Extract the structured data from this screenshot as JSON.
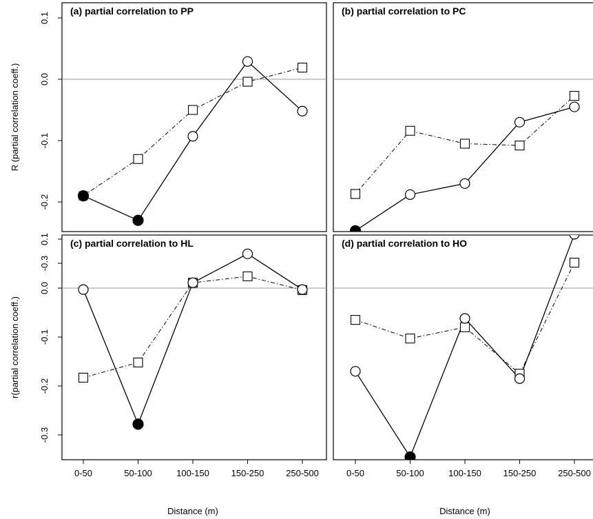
{
  "chart_data": {
    "type": "line",
    "xlabel": "Distance (m)",
    "categories": [
      "0-50",
      "50-100",
      "100-150",
      "150-250",
      "250-500"
    ],
    "ylim": [
      -0.35,
      0.15
    ],
    "yticks": [
      0.1,
      0.0,
      -0.1,
      -0.2,
      -0.3
    ],
    "ytick_labels": [
      "0.1",
      "0.0",
      "-0.1",
      "-0.2",
      "-0.3"
    ],
    "reference_line": 0,
    "colors": {
      "filled_highlight": "#000000",
      "gray_highlight": "#aaaaaa",
      "reference": "#999999"
    },
    "panels": [
      {
        "title": "(a) partial correlation to PP",
        "ylabel": "R (partial correlation coeff.)",
        "series": [
          {
            "style": "solid",
            "marker": "circle",
            "values": [
              -0.19,
              -0.23,
              -0.093,
              0.029,
              -0.052
            ],
            "filled": [
              true,
              true,
              false,
              false,
              false
            ]
          },
          {
            "style": "dashdot",
            "marker": "square",
            "values": [
              -0.19,
              -0.13,
              -0.05,
              -0.004,
              0.019
            ],
            "filled": [
              true,
              false,
              false,
              false,
              false
            ]
          }
        ]
      },
      {
        "title": "(b) partial correlation to PC",
        "ylabel": "",
        "series": [
          {
            "style": "solid",
            "marker": "circle",
            "values": [
              -0.247,
              -0.188,
              -0.17,
              -0.07,
              -0.045
            ],
            "filled": [
              true,
              false,
              false,
              false,
              false
            ]
          },
          {
            "style": "dashdot",
            "marker": "square",
            "values": [
              -0.187,
              -0.084,
              -0.105,
              -0.108,
              -0.027
            ],
            "filled": [
              false,
              false,
              false,
              false,
              false
            ]
          }
        ]
      },
      {
        "title": "(c) partial correlation to HL",
        "ylabel": "r(partial correlation coeff.)",
        "series": [
          {
            "style": "solid",
            "marker": "circle",
            "values": [
              -0.003,
              -0.278,
              0.011,
              0.07,
              -0.003
            ],
            "filled": [
              false,
              true,
              false,
              false,
              false
            ]
          },
          {
            "style": "dashdot",
            "marker": "square",
            "values": [
              -0.183,
              -0.152,
              0.011,
              0.024,
              -0.004
            ],
            "filled": [
              false,
              false,
              false,
              false,
              false
            ]
          }
        ]
      },
      {
        "title": "(d) partial correlation to HO",
        "ylabel": "",
        "series": [
          {
            "style": "solid",
            "marker": "circle",
            "values": [
              -0.17,
              -0.345,
              -0.062,
              -0.185,
              0.11
            ],
            "filled": [
              false,
              true,
              false,
              false,
              false
            ]
          },
          {
            "style": "dashdot",
            "marker": "square",
            "values": [
              -0.065,
              -0.103,
              -0.08,
              -0.175,
              0.052
            ],
            "filled": [
              false,
              false,
              false,
              false,
              false
            ]
          }
        ]
      }
    ]
  }
}
